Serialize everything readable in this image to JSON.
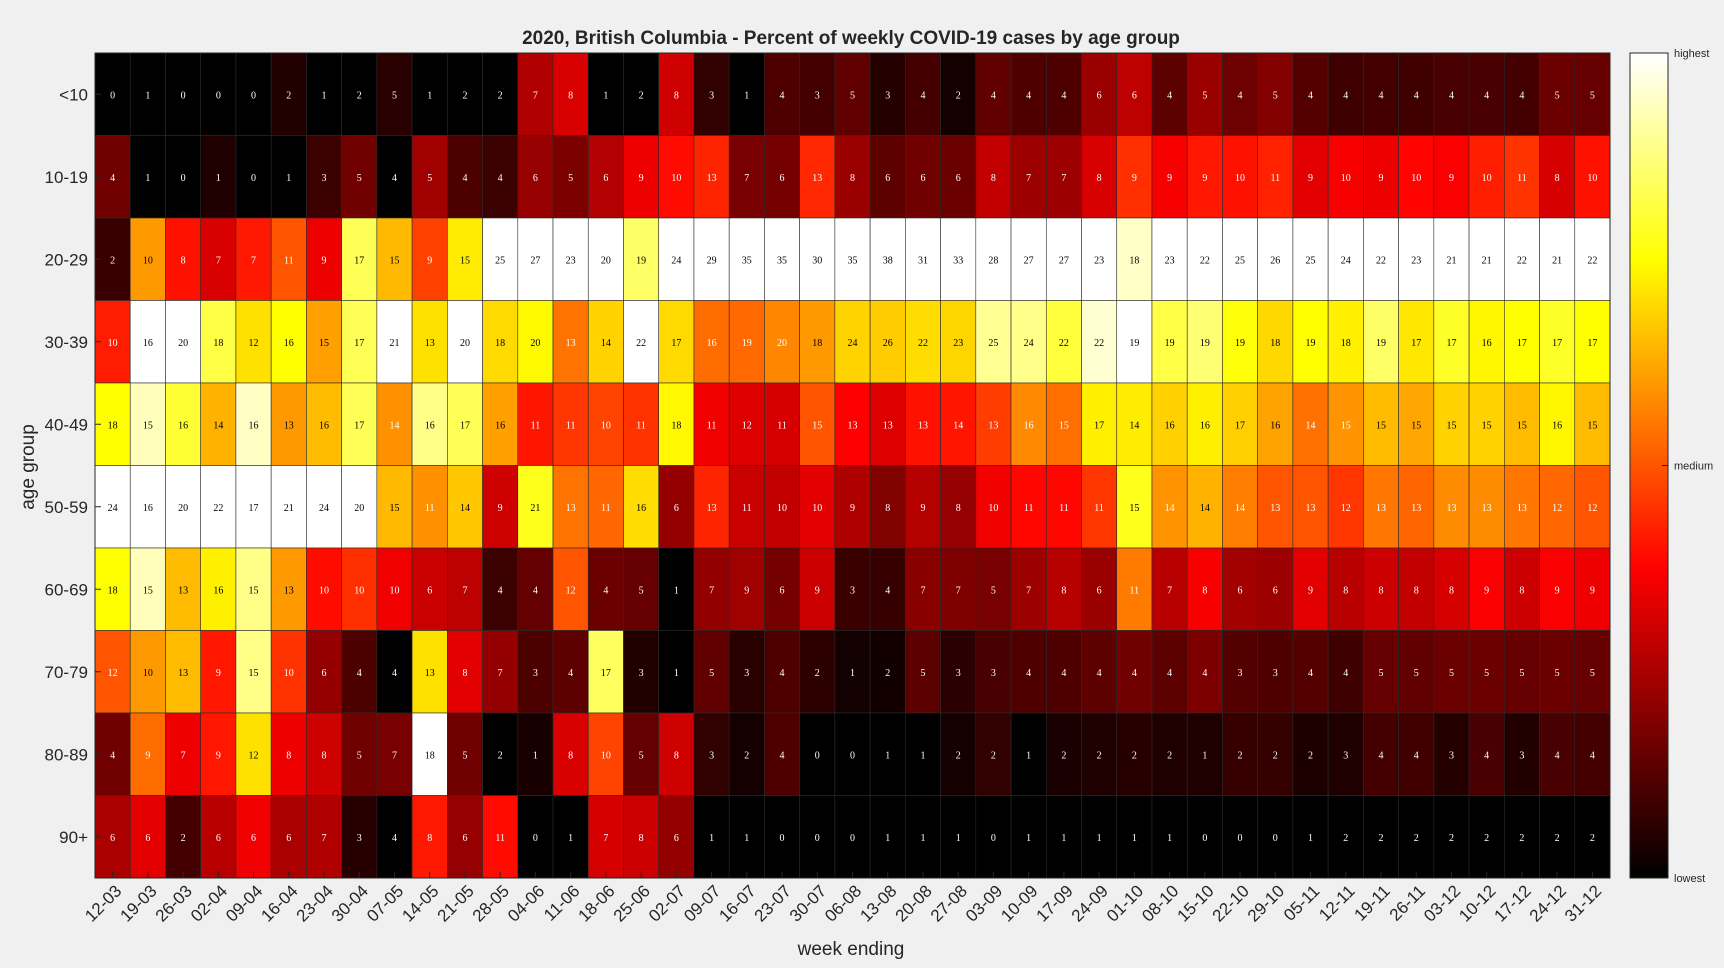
{
  "chart_data": {
    "type": "heatmap",
    "title": "2020, British Columbia - Percent of weekly COVID-19 cases by age group",
    "xlabel": "week ending",
    "ylabel": "age group",
    "x_categories": [
      "12-03",
      "19-03",
      "26-03",
      "02-04",
      "09-04",
      "16-04",
      "23-04",
      "30-04",
      "07-05",
      "14-05",
      "21-05",
      "28-05",
      "04-06",
      "11-06",
      "18-06",
      "25-06",
      "02-07",
      "09-07",
      "16-07",
      "23-07",
      "30-07",
      "06-08",
      "13-08",
      "20-08",
      "27-08",
      "03-09",
      "10-09",
      "17-09",
      "24-09",
      "01-10",
      "08-10",
      "15-10",
      "22-10",
      "29-10",
      "05-11",
      "12-11",
      "19-11",
      "26-11",
      "03-12",
      "10-12",
      "17-12",
      "24-12",
      "31-12"
    ],
    "y_categories": [
      "<10",
      "10-19",
      "20-29",
      "30-39",
      "40-49",
      "50-59",
      "60-69",
      "70-79",
      "80-89",
      "90+"
    ],
    "values": [
      [
        0,
        1,
        0,
        0,
        0,
        2,
        1,
        2,
        5,
        1,
        2,
        2,
        7,
        8,
        1,
        2,
        8,
        3,
        1,
        4,
        3,
        5,
        3,
        4,
        2,
        4,
        4,
        4,
        6,
        6,
        4,
        5,
        4,
        5,
        4,
        4,
        4,
        4,
        4,
        4,
        4,
        5,
        5
      ],
      [
        4,
        1,
        0,
        1,
        0,
        1,
        3,
        5,
        4,
        5,
        4,
        4,
        6,
        5,
        6,
        9,
        10,
        13,
        7,
        6,
        13,
        8,
        6,
        6,
        6,
        8,
        7,
        7,
        8,
        9,
        9,
        9,
        10,
        11,
        9,
        10,
        9,
        10,
        9,
        10,
        11,
        8,
        10
      ],
      [
        2,
        10,
        8,
        7,
        7,
        11,
        9,
        17,
        15,
        9,
        15,
        25,
        27,
        23,
        20,
        19,
        24,
        29,
        35,
        35,
        30,
        35,
        38,
        31,
        33,
        28,
        27,
        27,
        23,
        18,
        23,
        22,
        25,
        26,
        25,
        24,
        22,
        23,
        21,
        21,
        22,
        21,
        22
      ],
      [
        10,
        16,
        20,
        18,
        12,
        16,
        15,
        17,
        21,
        13,
        20,
        18,
        20,
        13,
        14,
        22,
        17,
        16,
        19,
        20,
        18,
        24,
        26,
        22,
        23,
        25,
        24,
        22,
        22,
        19,
        19,
        19,
        19,
        18,
        19,
        18,
        19,
        17,
        17,
        16,
        17,
        17,
        17
      ],
      [
        18,
        15,
        16,
        14,
        16,
        13,
        16,
        17,
        14,
        16,
        17,
        16,
        11,
        11,
        10,
        11,
        18,
        11,
        12,
        11,
        15,
        13,
        13,
        13,
        14,
        13,
        16,
        15,
        17,
        14,
        16,
        16,
        17,
        16,
        14,
        15,
        15,
        15,
        15,
        15,
        15,
        16,
        15
      ],
      [
        24,
        16,
        20,
        22,
        17,
        21,
        24,
        20,
        15,
        11,
        14,
        9,
        21,
        13,
        11,
        16,
        6,
        13,
        11,
        10,
        10,
        9,
        8,
        9,
        8,
        10,
        11,
        11,
        11,
        15,
        14,
        14,
        14,
        13,
        13,
        12,
        13,
        13,
        13,
        13,
        13,
        12,
        12
      ],
      [
        18,
        15,
        13,
        16,
        15,
        13,
        10,
        10,
        10,
        6,
        7,
        4,
        4,
        12,
        4,
        5,
        1,
        7,
        9,
        6,
        9,
        3,
        4,
        7,
        7,
        5,
        7,
        8,
        6,
        11,
        7,
        8,
        6,
        6,
        9,
        8,
        8,
        8,
        8,
        9,
        8,
        9,
        9
      ],
      [
        12,
        10,
        13,
        9,
        15,
        10,
        6,
        4,
        4,
        13,
        8,
        7,
        3,
        4,
        17,
        3,
        1,
        5,
        3,
        4,
        2,
        1,
        2,
        5,
        3,
        3,
        4,
        4,
        4,
        4,
        4,
        4,
        3,
        3,
        4,
        4,
        5,
        5,
        5,
        5,
        5,
        5,
        5
      ],
      [
        4,
        9,
        7,
        9,
        12,
        8,
        8,
        5,
        7,
        18,
        5,
        2,
        1,
        8,
        10,
        5,
        8,
        3,
        2,
        4,
        0,
        0,
        1,
        1,
        2,
        2,
        1,
        2,
        2,
        2,
        2,
        1,
        2,
        2,
        2,
        3,
        4,
        4,
        3,
        4,
        3,
        4,
        4
      ],
      [
        6,
        6,
        2,
        6,
        6,
        6,
        7,
        3,
        4,
        8,
        6,
        11,
        0,
        1,
        7,
        8,
        6,
        1,
        1,
        0,
        0,
        0,
        1,
        1,
        1,
        0,
        1,
        1,
        1,
        1,
        1,
        0,
        0,
        0,
        1,
        2,
        2,
        2,
        2,
        2,
        2,
        2,
        2
      ]
    ],
    "colormap": "hot",
    "colorbar": {
      "labels": [
        "highest",
        "medium",
        "lowest"
      ]
    },
    "grid": false
  }
}
